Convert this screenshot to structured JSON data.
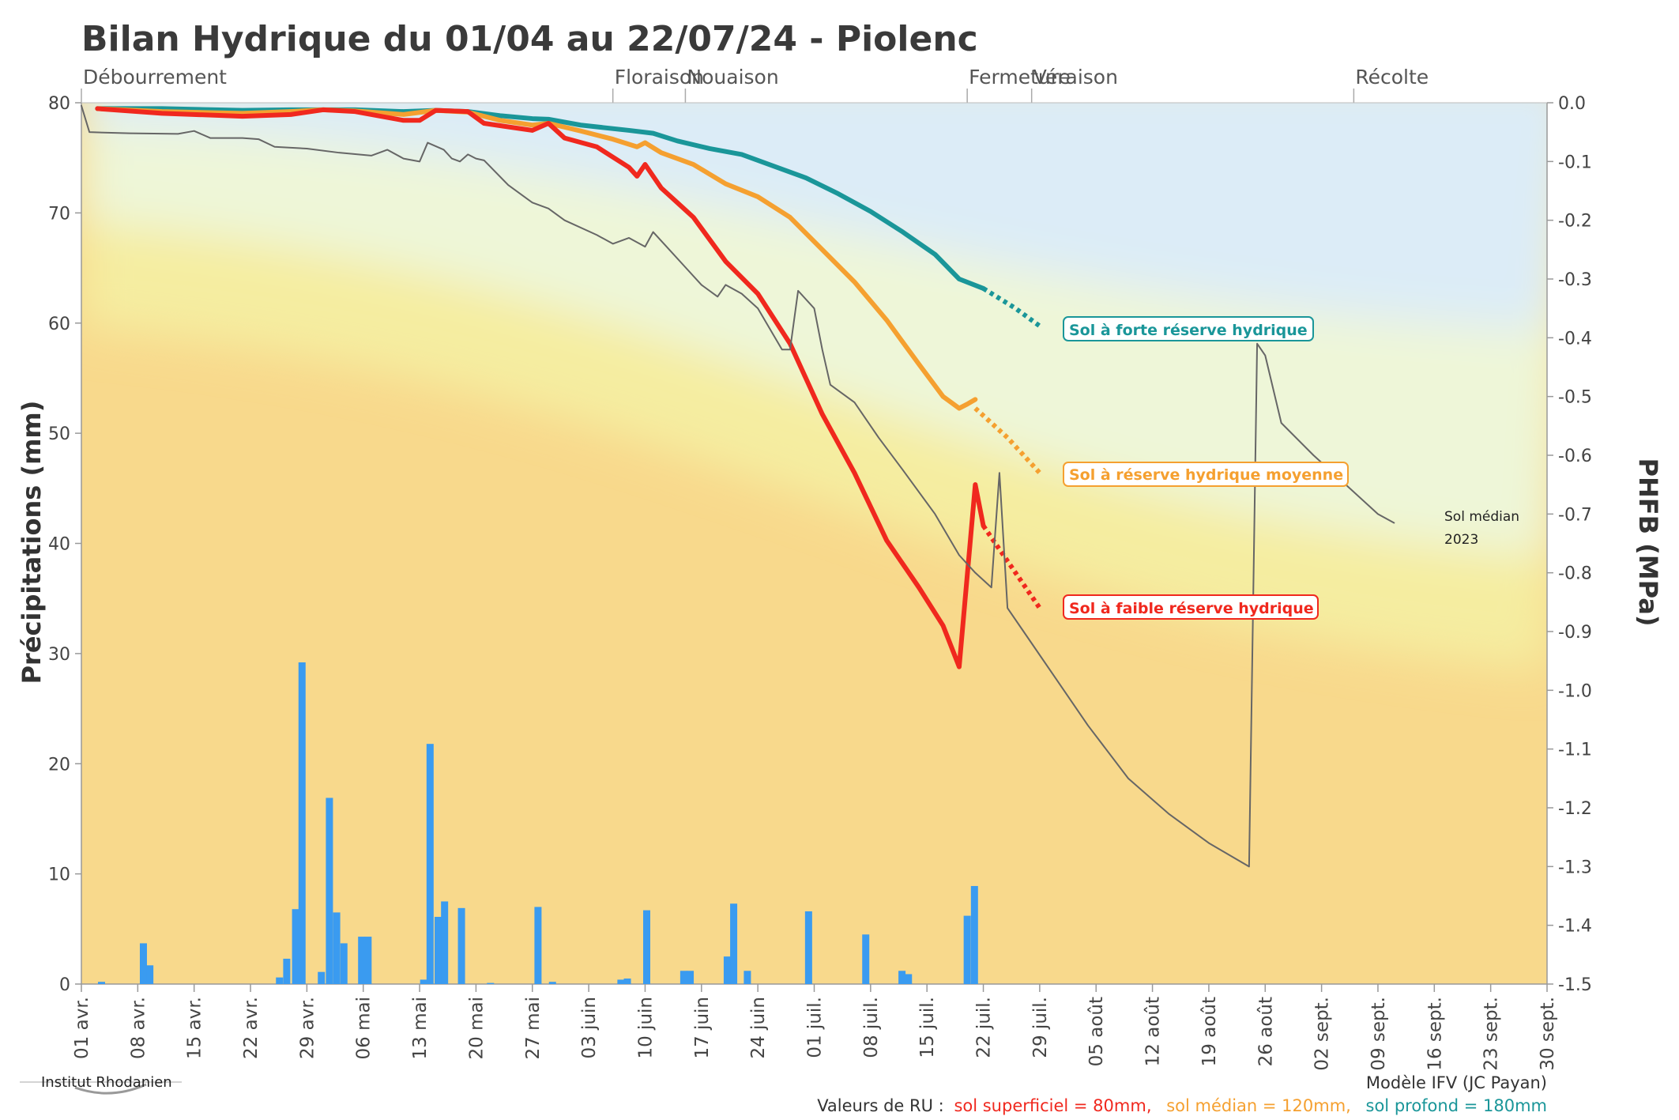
{
  "title": "Bilan Hydrique du 01/04 au 22/07/24 - Piolenc",
  "stages": [
    {
      "label": "Débourrement",
      "date": 0
    },
    {
      "label": "Floraison",
      "date": 66
    },
    {
      "label": "Nouaison",
      "date": 75
    },
    {
      "label": "Fermeture",
      "date": 110
    },
    {
      "label": "Véraison",
      "date": 118
    },
    {
      "label": "Récolte",
      "date": 158
    }
  ],
  "legend": {
    "deep": "Sol à forte réserve hydrique",
    "medium": "Sol à réserve hydrique moyenne",
    "shallow": "Sol à faible réserve hydrique",
    "median_line1": "Sol médian",
    "median_line2": "2023"
  },
  "footer": {
    "institute": "Institut Rhodanien",
    "model": "Modèle IFV (JC Payan)",
    "ru_prefix": "Valeurs de RU :",
    "ru_shallow": "sol superficiel = 80mm,",
    "ru_medium": "sol médian = 120mm,",
    "ru_deep": "sol profond = 180mm"
  },
  "colors": {
    "deep": "#1a9699",
    "medium": "#f5a030",
    "shallow": "#f0281e",
    "median2023": "#666666",
    "bars": "#3a9bf0"
  },
  "chart_data": {
    "type": "line",
    "title": "Bilan Hydrique du 01/04 au 22/07/24 - Piolenc",
    "ylabel": "Précipitations (mm)",
    "y2label": "PHFB (MPa)",
    "ylim": [
      0,
      80
    ],
    "y2lim": [
      -1.5,
      0.0
    ],
    "xlim_days": [
      0,
      182
    ],
    "yticks": [
      "0",
      "10",
      "20",
      "30",
      "40",
      "50",
      "60",
      "70",
      "80"
    ],
    "y2ticks": [
      "0.0",
      "-0.1",
      "-0.2",
      "-0.3",
      "-0.4",
      "-0.5",
      "-0.6",
      "-0.7",
      "-0.8",
      "-0.9",
      "-1.0",
      "-1.1",
      "-1.2",
      "-1.3",
      "-1.4",
      "-1.5"
    ],
    "xticks": [
      {
        "day": 0,
        "label": "01 avr."
      },
      {
        "day": 7,
        "label": "08 avr."
      },
      {
        "day": 14,
        "label": "15 avr."
      },
      {
        "day": 21,
        "label": "22 avr."
      },
      {
        "day": 28,
        "label": "29 avr."
      },
      {
        "day": 35,
        "label": "06 mai"
      },
      {
        "day": 42,
        "label": "13 mai"
      },
      {
        "day": 49,
        "label": "20 mai"
      },
      {
        "day": 56,
        "label": "27 mai"
      },
      {
        "day": 63,
        "label": "03 juin"
      },
      {
        "day": 70,
        "label": "10 juin"
      },
      {
        "day": 77,
        "label": "17 juin"
      },
      {
        "day": 84,
        "label": "24 juin"
      },
      {
        "day": 91,
        "label": "01 juil."
      },
      {
        "day": 98,
        "label": "08 juil."
      },
      {
        "day": 105,
        "label": "15 juil."
      },
      {
        "day": 112,
        "label": "22 juil."
      },
      {
        "day": 119,
        "label": "29 juil."
      },
      {
        "day": 126,
        "label": "05 août"
      },
      {
        "day": 133,
        "label": "12 août"
      },
      {
        "day": 140,
        "label": "19 août"
      },
      {
        "day": 147,
        "label": "26 août"
      },
      {
        "day": 154,
        "label": "02 sept."
      },
      {
        "day": 161,
        "label": "09 sept."
      },
      {
        "day": 168,
        "label": "16 sept."
      },
      {
        "day": 175,
        "label": "23 sept."
      },
      {
        "day": 182,
        "label": "30 sept."
      }
    ],
    "precipitation": [
      {
        "day": 2.5,
        "mm": 0.2
      },
      {
        "day": 7.7,
        "mm": 3.7
      },
      {
        "day": 8.5,
        "mm": 1.7
      },
      {
        "day": 24.6,
        "mm": 0.6
      },
      {
        "day": 25.5,
        "mm": 2.3
      },
      {
        "day": 26.6,
        "mm": 6.8
      },
      {
        "day": 27.4,
        "mm": 29.2
      },
      {
        "day": 29.8,
        "mm": 1.1
      },
      {
        "day": 30.8,
        "mm": 16.9
      },
      {
        "day": 31.7,
        "mm": 6.5
      },
      {
        "day": 32.6,
        "mm": 3.7
      },
      {
        "day": 34.8,
        "mm": 4.3
      },
      {
        "day": 35.6,
        "mm": 4.3
      },
      {
        "day": 42.5,
        "mm": 0.4
      },
      {
        "day": 43.3,
        "mm": 21.8
      },
      {
        "day": 44.3,
        "mm": 6.1
      },
      {
        "day": 45.1,
        "mm": 7.5
      },
      {
        "day": 47.2,
        "mm": 6.9
      },
      {
        "day": 50.8,
        "mm": 0.1
      },
      {
        "day": 56.7,
        "mm": 7.0
      },
      {
        "day": 58.5,
        "mm": 0.2
      },
      {
        "day": 67.0,
        "mm": 0.4
      },
      {
        "day": 67.8,
        "mm": 0.5
      },
      {
        "day": 70.2,
        "mm": 6.7
      },
      {
        "day": 74.8,
        "mm": 1.2
      },
      {
        "day": 75.6,
        "mm": 1.2
      },
      {
        "day": 80.2,
        "mm": 2.5
      },
      {
        "day": 81.0,
        "mm": 7.3
      },
      {
        "day": 82.7,
        "mm": 1.2
      },
      {
        "day": 90.3,
        "mm": 6.6
      },
      {
        "day": 97.4,
        "mm": 4.5
      },
      {
        "day": 101.9,
        "mm": 1.2
      },
      {
        "day": 102.7,
        "mm": 0.9
      },
      {
        "day": 110.0,
        "mm": 6.2
      },
      {
        "day": 110.9,
        "mm": 8.9
      }
    ],
    "series": [
      {
        "name": "Sol à forte réserve hydrique",
        "color": "#1a9699",
        "values": [
          [
            2,
            -0.01
          ],
          [
            10,
            -0.01
          ],
          [
            20,
            -0.013
          ],
          [
            26,
            -0.012
          ],
          [
            30,
            -0.012
          ],
          [
            34,
            -0.012
          ],
          [
            40,
            -0.015
          ],
          [
            44,
            -0.013
          ],
          [
            48,
            -0.015
          ],
          [
            52,
            -0.022
          ],
          [
            56,
            -0.027
          ],
          [
            58,
            -0.028
          ],
          [
            62,
            -0.038
          ],
          [
            68,
            -0.047
          ],
          [
            71,
            -0.052
          ],
          [
            74,
            -0.065
          ],
          [
            78,
            -0.078
          ],
          [
            82,
            -0.088
          ],
          [
            86,
            -0.108
          ],
          [
            90,
            -0.128
          ],
          [
            94,
            -0.155
          ],
          [
            98,
            -0.185
          ],
          [
            102,
            -0.22
          ],
          [
            106,
            -0.258
          ],
          [
            109,
            -0.3
          ],
          [
            112,
            -0.316
          ]
        ],
        "forecast": [
          [
            112,
            -0.316
          ],
          [
            116,
            -0.35
          ],
          [
            119,
            -0.38
          ]
        ]
      },
      {
        "name": "Sol à réserve hydrique moyenne",
        "color": "#f5a030",
        "values": [
          [
            2,
            -0.01
          ],
          [
            10,
            -0.015
          ],
          [
            20,
            -0.018
          ],
          [
            26,
            -0.015
          ],
          [
            30,
            -0.012
          ],
          [
            34,
            -0.014
          ],
          [
            40,
            -0.02
          ],
          [
            44,
            -0.013
          ],
          [
            48,
            -0.016
          ],
          [
            52,
            -0.03
          ],
          [
            56,
            -0.038
          ],
          [
            58,
            -0.035
          ],
          [
            62,
            -0.048
          ],
          [
            66,
            -0.062
          ],
          [
            69,
            -0.075
          ],
          [
            70,
            -0.068
          ],
          [
            72,
            -0.085
          ],
          [
            76,
            -0.105
          ],
          [
            80,
            -0.138
          ],
          [
            84,
            -0.16
          ],
          [
            88,
            -0.195
          ],
          [
            92,
            -0.25
          ],
          [
            96,
            -0.305
          ],
          [
            100,
            -0.37
          ],
          [
            104,
            -0.445
          ],
          [
            107,
            -0.5
          ],
          [
            109,
            -0.52
          ],
          [
            110,
            -0.513
          ],
          [
            111,
            -0.505
          ]
        ],
        "forecast": [
          [
            111,
            -0.52
          ],
          [
            115,
            -0.57
          ],
          [
            119,
            -0.63
          ]
        ]
      },
      {
        "name": "Sol à faible réserve hydrique",
        "color": "#f0281e",
        "values": [
          [
            2,
            -0.01
          ],
          [
            10,
            -0.018
          ],
          [
            20,
            -0.023
          ],
          [
            26,
            -0.02
          ],
          [
            30,
            -0.012
          ],
          [
            34,
            -0.015
          ],
          [
            40,
            -0.03
          ],
          [
            42,
            -0.03
          ],
          [
            44,
            -0.013
          ],
          [
            48,
            -0.015
          ],
          [
            50,
            -0.035
          ],
          [
            56,
            -0.047
          ],
          [
            58,
            -0.035
          ],
          [
            60,
            -0.06
          ],
          [
            64,
            -0.075
          ],
          [
            68,
            -0.11
          ],
          [
            69,
            -0.125
          ],
          [
            70,
            -0.105
          ],
          [
            72,
            -0.145
          ],
          [
            76,
            -0.195
          ],
          [
            80,
            -0.27
          ],
          [
            84,
            -0.325
          ],
          [
            88,
            -0.41
          ],
          [
            92,
            -0.53
          ],
          [
            96,
            -0.63
          ],
          [
            100,
            -0.745
          ],
          [
            104,
            -0.825
          ],
          [
            107,
            -0.89
          ],
          [
            109,
            -0.96
          ],
          [
            111,
            -0.65
          ],
          [
            112,
            -0.72
          ]
        ],
        "forecast": [
          [
            112,
            -0.72
          ],
          [
            116,
            -0.8
          ],
          [
            119,
            -0.86
          ]
        ]
      },
      {
        "name": "Sol médian 2023",
        "color": "#666666",
        "values": [
          [
            0,
            -0.005
          ],
          [
            1,
            -0.05
          ],
          [
            6,
            -0.052
          ],
          [
            12,
            -0.053
          ],
          [
            14,
            -0.048
          ],
          [
            16,
            -0.06
          ],
          [
            20,
            -0.06
          ],
          [
            22,
            -0.062
          ],
          [
            24,
            -0.075
          ],
          [
            28,
            -0.078
          ],
          [
            32,
            -0.085
          ],
          [
            36,
            -0.09
          ],
          [
            38,
            -0.08
          ],
          [
            40,
            -0.095
          ],
          [
            42,
            -0.1
          ],
          [
            43,
            -0.068
          ],
          [
            45,
            -0.08
          ],
          [
            46,
            -0.095
          ],
          [
            47,
            -0.1
          ],
          [
            48,
            -0.088
          ],
          [
            49,
            -0.095
          ],
          [
            50,
            -0.098
          ],
          [
            53,
            -0.14
          ],
          [
            56,
            -0.17
          ],
          [
            58,
            -0.18
          ],
          [
            60,
            -0.2
          ],
          [
            64,
            -0.225
          ],
          [
            66,
            -0.24
          ],
          [
            68,
            -0.23
          ],
          [
            70,
            -0.245
          ],
          [
            71,
            -0.22
          ],
          [
            73,
            -0.25
          ],
          [
            75,
            -0.28
          ],
          [
            77,
            -0.31
          ],
          [
            79,
            -0.33
          ],
          [
            80,
            -0.31
          ],
          [
            82,
            -0.325
          ],
          [
            84,
            -0.35
          ],
          [
            87,
            -0.42
          ],
          [
            88,
            -0.42
          ],
          [
            89,
            -0.32
          ],
          [
            91,
            -0.35
          ],
          [
            92,
            -0.42
          ],
          [
            93,
            -0.48
          ],
          [
            96,
            -0.51
          ],
          [
            99,
            -0.57
          ],
          [
            102,
            -0.625
          ],
          [
            106,
            -0.7
          ],
          [
            109,
            -0.77
          ],
          [
            111,
            -0.8
          ],
          [
            113,
            -0.825
          ],
          [
            114,
            -0.63
          ],
          [
            115,
            -0.86
          ],
          [
            117,
            -0.9
          ],
          [
            121,
            -0.98
          ],
          [
            125,
            -1.06
          ],
          [
            130,
            -1.15
          ],
          [
            135,
            -1.21
          ],
          [
            140,
            -1.26
          ],
          [
            145,
            -1.3
          ],
          [
            146,
            -0.41
          ],
          [
            147,
            -0.43
          ],
          [
            149,
            -0.545
          ],
          [
            153,
            -0.6
          ],
          [
            157,
            -0.65
          ],
          [
            161,
            -0.7
          ],
          [
            163,
            -0.715
          ]
        ],
        "forecast": []
      }
    ]
  }
}
